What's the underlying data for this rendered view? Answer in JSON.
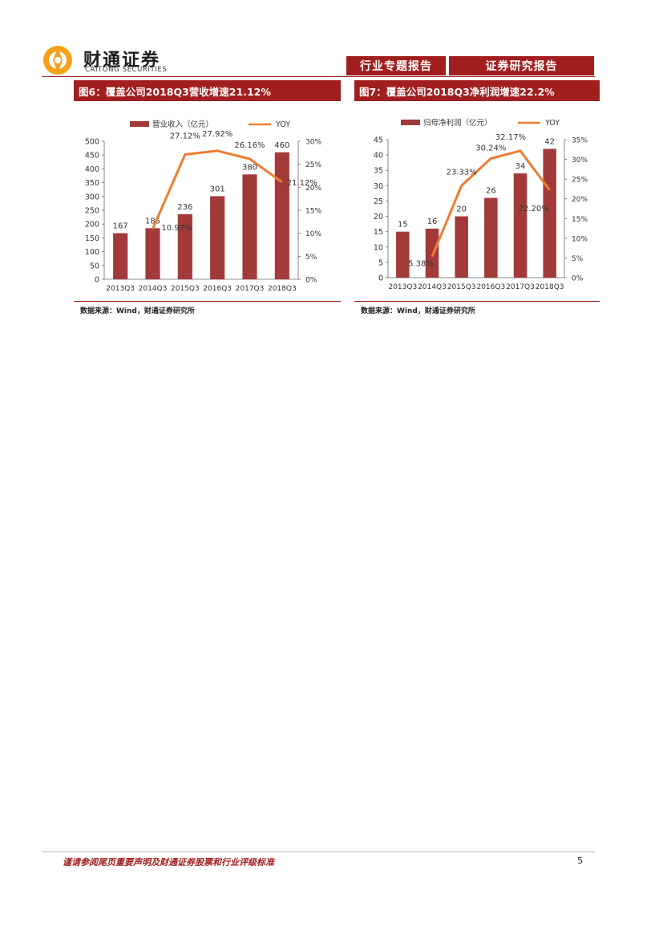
{
  "header": {
    "logo_cn": "财通证券",
    "logo_en": "CAITONG SECURITIES",
    "tag_left": "行业专题报告",
    "tag_right": "证券研究报告",
    "colors": {
      "brand_red": "#a11e1e",
      "logo_orange": "#f3a21a"
    }
  },
  "chart_data": [
    {
      "type": "bar",
      "title": "图6：覆盖公司2018Q3营收增速21.12%",
      "categories": [
        "2013Q3",
        "2014Q3",
        "2015Q3",
        "2016Q3",
        "2017Q3",
        "2018Q3"
      ],
      "series": [
        {
          "name": "营业收入（亿元）",
          "type": "bar",
          "axis": "left",
          "values": [
            167,
            185,
            236,
            301,
            380,
            460
          ],
          "labels": [
            "167",
            "185",
            "236",
            "301",
            "380",
            "460"
          ],
          "color": "#a33a3a"
        },
        {
          "name": "YOY",
          "type": "line",
          "axis": "right",
          "values": [
            null,
            10.97,
            27.12,
            27.92,
            26.16,
            21.12
          ],
          "labels": [
            "",
            "10.97%",
            "27.12%",
            "27.92%",
            "26.16%",
            "21.12%"
          ],
          "color": "#ed7d31"
        }
      ],
      "ylim_left": [
        0,
        500
      ],
      "yticks_left": [
        "0",
        "50",
        "100",
        "150",
        "200",
        "250",
        "300",
        "350",
        "400",
        "450",
        "500"
      ],
      "ylim_right": [
        0,
        30
      ],
      "yticks_right": [
        "0%",
        "5%",
        "10%",
        "15%",
        "20%",
        "25%",
        "30%"
      ],
      "legend_position": "top",
      "source": "数据来源：Wind，财通证券研究所"
    },
    {
      "type": "bar",
      "title": "图7：覆盖公司2018Q3净利润增速22.2%",
      "categories": [
        "2013Q3",
        "2014Q3",
        "2015Q3",
        "2016Q3",
        "2017Q3",
        "2018Q3"
      ],
      "series": [
        {
          "name": "归母净利润（亿元）",
          "type": "bar",
          "axis": "left",
          "values": [
            15,
            16,
            20,
            26,
            34,
            42
          ],
          "labels": [
            "15",
            "16",
            "20",
            "26",
            "34",
            "42"
          ],
          "color": "#a33a3a"
        },
        {
          "name": "YOY",
          "type": "line",
          "axis": "right",
          "values": [
            null,
            5.38,
            23.33,
            30.24,
            32.17,
            22.2
          ],
          "labels": [
            "",
            "5.38%",
            "23.33%",
            "30.24%",
            "32.17%",
            "22.20%"
          ],
          "color": "#ed7d31"
        }
      ],
      "ylim_left": [
        0,
        45
      ],
      "yticks_left": [
        "0",
        "5",
        "10",
        "15",
        "20",
        "25",
        "30",
        "35",
        "40",
        "45"
      ],
      "ylim_right": [
        0,
        35
      ],
      "yticks_right": [
        "0%",
        "5%",
        "10%",
        "15%",
        "20%",
        "25%",
        "30%",
        "35%"
      ],
      "legend_position": "top",
      "source": "数据来源：Wind，财通证券研究所"
    }
  ],
  "footer": {
    "disclaimer": "谨请参阅尾页重要声明及财通证券股票和行业评级标准",
    "page_number": "5"
  }
}
